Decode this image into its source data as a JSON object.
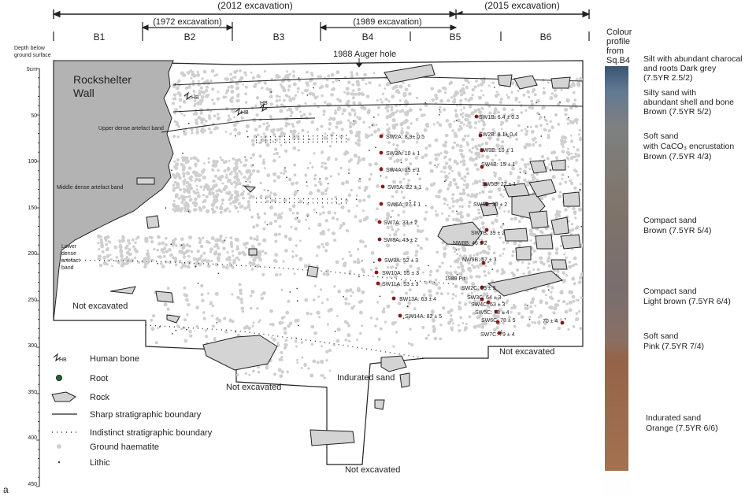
{
  "panel_label": "a",
  "excavations": {
    "e2012": "(2012 excavation)",
    "e2015": "(2015 excavation)",
    "e1972": "(1972 excavation)",
    "e1989": "(1989 excavation)"
  },
  "squares": [
    "B1",
    "B2",
    "B3",
    "B4",
    "B5",
    "B6"
  ],
  "depth_axis": {
    "title_line1": "Depth below",
    "title_line2": "ground surface",
    "ticks": [
      "0cm",
      "50",
      "100",
      "150",
      "200",
      "250",
      "300",
      "350",
      "400",
      "450"
    ]
  },
  "section": {
    "wall_line1": "Rockshelter",
    "wall_line2": "Wall",
    "auger": "1988 Auger hole",
    "upper_band": "Upper dense artefact band",
    "middle_band": "Middle dense artefact band",
    "lower_band_1": "Lower",
    "lower_band_2": "dense",
    "lower_band_3": "artefact",
    "lower_band_4": "band",
    "hb": "HB",
    "pit_1989": "1989 Pit",
    "not_excavated": "Not excavated",
    "indurated": "Indurated sand"
  },
  "samples": [
    "SW1B: 6.4 ± 0.3",
    "SW2B: 8.1± 0.4",
    "SW3B: 10 ± 1",
    "SW4B: 15 ± 1",
    "SW5B: 22 ± 1",
    "SW6B: 30 ± 2",
    "SW7B: 39 ± 2",
    "NW8B: 46 ± 2",
    "NW9B: 57 ± 3",
    "SW2C: 65 ± 3",
    "SW3C: 64 ± 3",
    "SW4C: 63 ± 3",
    "SW5C: 73 ± 4",
    "SW6C: 78 ± 5",
    "SW7C: 79 ± 4",
    "SW2A: 8.9± 0.5",
    "SW3A: 10 ± 1",
    "SW4A: 15 ± 1",
    "SW5A: 22 ± 1",
    "SW6A: 27 ± 1",
    "SW7A: 33 ± 2",
    "SW8A: 43 ± 2",
    "SW9A: 52 ± 3",
    "SW10A: 55 ± 3",
    "SW11A: 53 ± 3",
    "SW13A: 63 ± 4",
    "SW14A: 82 ± 5",
    "70 ± 4"
  ],
  "legend": {
    "human_bone": "Human bone",
    "root": "Root",
    "rock": "Rock",
    "sharp": "Sharp stratigraphic boundary",
    "indistinct": "Indistinct stratigraphic boundary",
    "haematite": "Ground haematite",
    "lithic": "Lithic"
  },
  "profile": {
    "title_1": "Colour",
    "title_2": "profile",
    "title_3": "from",
    "title_4": "Sq.B4",
    "layers": [
      {
        "l1": "Silt with abundant charocal",
        "l2": "and roots    Dark grey",
        "l3": "(7.5YR 2.5/2)",
        "color": "#566a80"
      },
      {
        "l1": "Silty sand with",
        "l2": "abundant shell and bone",
        "l3": "Brown (7.5YR 5/2)",
        "color": "#857d73"
      },
      {
        "l1": "Soft sand",
        "l2": "with CaCO₃ encrustation",
        "l3": "Brown (7.5YR 4/3)",
        "color": "#8b7f74"
      },
      {
        "l1": "Compact sand",
        "l2": "Brown (7.5YR 5/4)",
        "l3": "",
        "color": "#837874"
      },
      {
        "l1": "Compact sand",
        "l2": "Light brown (7.5YR 6/4)",
        "l3": "",
        "color": "#957b70"
      },
      {
        "l1": "Soft sand",
        "l2": "Pink (7.5YR 7/4)",
        "l3": "",
        "color": "#9e7b6c"
      },
      {
        "l1": "Indurated sand",
        "l2": "Orange (7.5YR 6/6)",
        "l3": "",
        "color": "#a5724f"
      }
    ]
  },
  "colors": {
    "rock_fill": "#d4d4d4",
    "wall_fill": "#b3b3b3",
    "haematite": "#cfcfcf",
    "sample_dot": "#8b1a1a",
    "root_dot": "#1f6b2a"
  }
}
